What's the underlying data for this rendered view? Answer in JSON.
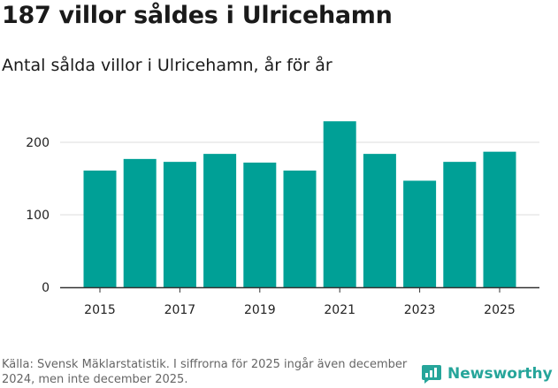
{
  "header": {
    "title": "187 villor såldes i Ulricehamn",
    "subtitle": "Antal sålda villor i Ulricehamn, år för år"
  },
  "chart_data": {
    "type": "bar",
    "title": "187 villor såldes i Ulricehamn",
    "subtitle": "Antal sålda villor i Ulricehamn, år för år",
    "categories": [
      "2015",
      "2016",
      "2017",
      "2018",
      "2019",
      "2020",
      "2021",
      "2022",
      "2023",
      "2024",
      "2025"
    ],
    "values": [
      161,
      177,
      173,
      184,
      172,
      161,
      229,
      184,
      147,
      173,
      187
    ],
    "x_tick_labels": [
      "2015",
      "2017",
      "2019",
      "2021",
      "2023",
      "2025"
    ],
    "y_ticks": [
      0,
      100,
      200
    ],
    "ylim": [
      0,
      250
    ],
    "xlabel": "",
    "ylabel": "",
    "grid": true,
    "bar_color": "#00a096"
  },
  "footer": {
    "source": "Källa: Svensk Mäklarstatistik. I siffrorna för 2025 ingår även december 2024, men inte december 2025.",
    "brand": "Newsworthy",
    "brand_color": "#26a59a"
  }
}
